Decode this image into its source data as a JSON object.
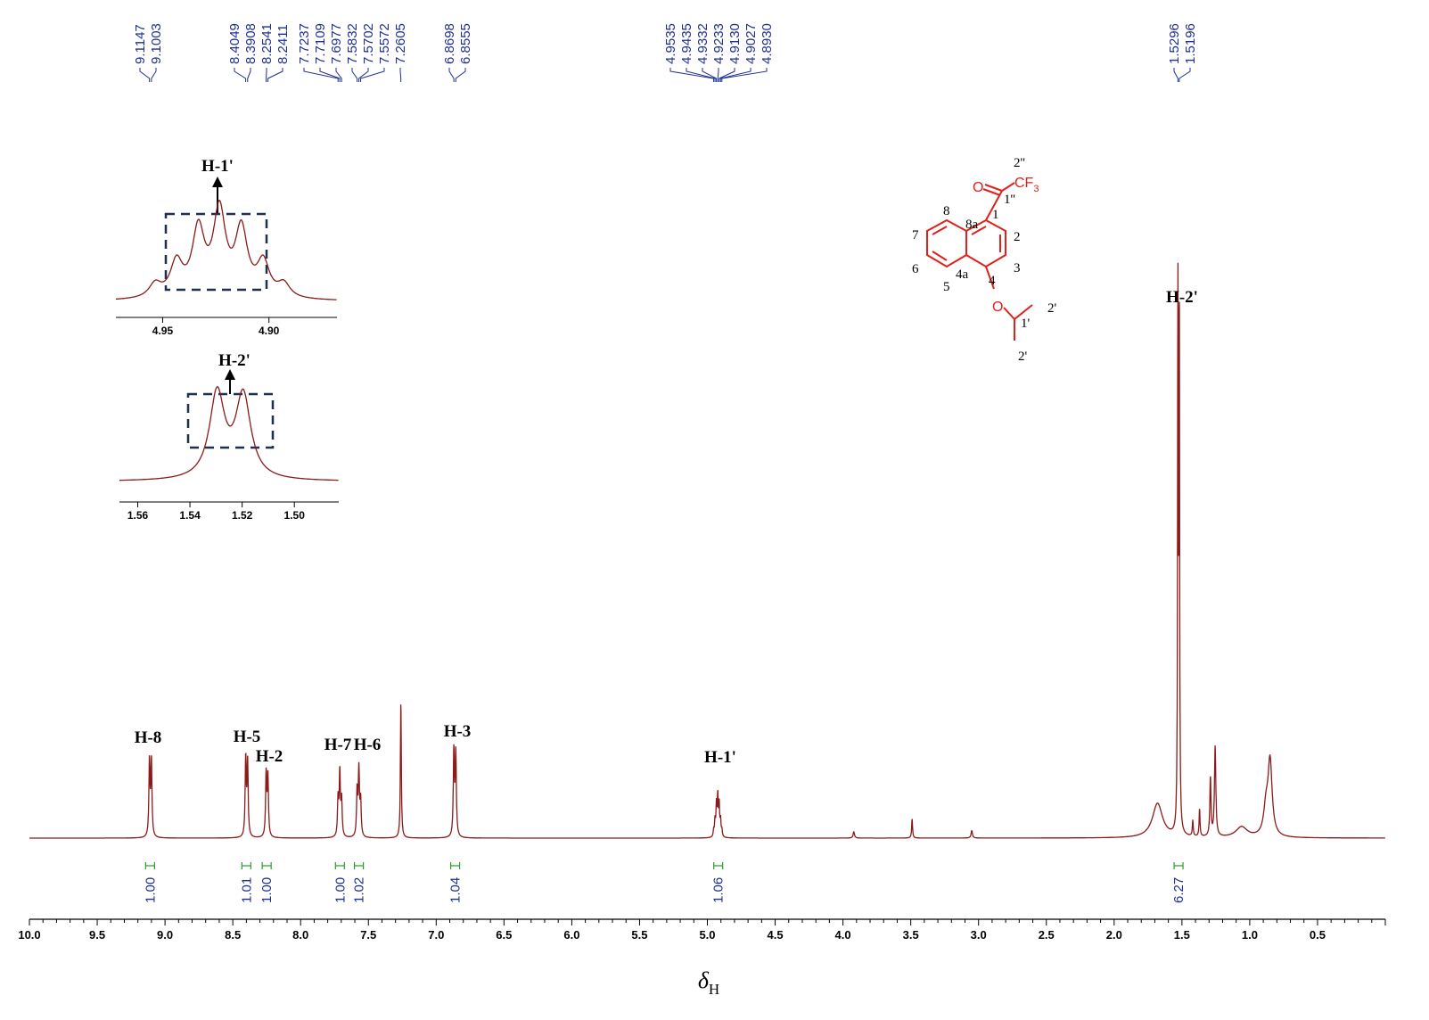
{
  "chart_data": {
    "type": "line",
    "title": "",
    "xlabel": "δH",
    "ylabel": "",
    "xlim": [
      10.0,
      0.0
    ],
    "x_reversed": true,
    "grid": false,
    "x_ticks": [
      "10.0",
      "9.5",
      "9.0",
      "8.5",
      "8.0",
      "7.5",
      "7.0",
      "6.5",
      "6.0",
      "5.5",
      "5.0",
      "4.5",
      "4.0",
      "3.5",
      "3.0",
      "2.5",
      "2.0",
      "1.5",
      "1.0",
      "0.5"
    ],
    "peak_labels": [
      "9.1147",
      "9.1003",
      "8.4049",
      "8.3908",
      "8.2541",
      "8.2411",
      "7.7237",
      "7.7109",
      "7.6977",
      "7.5832",
      "7.5702",
      "7.5572",
      "7.2605",
      "6.8698",
      "6.8555",
      "4.9535",
      "4.9435",
      "4.9332",
      "4.9233",
      "4.9130",
      "4.9027",
      "4.8930",
      "1.5296",
      "1.5196"
    ],
    "integrals": [
      {
        "ppm": 9.11,
        "value": "1.00"
      },
      {
        "ppm": 8.4,
        "value": "1.01"
      },
      {
        "ppm": 8.25,
        "value": "1.00"
      },
      {
        "ppm": 7.71,
        "value": "1.00"
      },
      {
        "ppm": 7.57,
        "value": "1.02"
      },
      {
        "ppm": 6.86,
        "value": "1.04"
      },
      {
        "ppm": 4.92,
        "value": "1.06"
      },
      {
        "ppm": 1.525,
        "value": "6.27"
      }
    ],
    "peaks": [
      {
        "ppm": 9.1147,
        "h": 0.142,
        "w": 0.005
      },
      {
        "ppm": 9.1003,
        "h": 0.142,
        "w": 0.005
      },
      {
        "ppm": 8.4049,
        "h": 0.146,
        "w": 0.005
      },
      {
        "ppm": 8.3908,
        "h": 0.14,
        "w": 0.005
      },
      {
        "ppm": 8.2541,
        "h": 0.118,
        "w": 0.005
      },
      {
        "ppm": 8.2411,
        "h": 0.114,
        "w": 0.005
      },
      {
        "ppm": 7.7237,
        "h": 0.07,
        "w": 0.005
      },
      {
        "ppm": 7.7109,
        "h": 0.118,
        "w": 0.005
      },
      {
        "ppm": 7.6977,
        "h": 0.068,
        "w": 0.005
      },
      {
        "ppm": 7.5832,
        "h": 0.084,
        "w": 0.005
      },
      {
        "ppm": 7.5702,
        "h": 0.124,
        "w": 0.005
      },
      {
        "ppm": 7.5572,
        "h": 0.066,
        "w": 0.005
      },
      {
        "ppm": 7.2605,
        "h": 0.256,
        "w": 0.004
      },
      {
        "ppm": 6.8698,
        "h": 0.16,
        "w": 0.005
      },
      {
        "ppm": 6.8555,
        "h": 0.156,
        "w": 0.005
      },
      {
        "ppm": 4.9535,
        "h": 0.012,
        "w": 0.004
      },
      {
        "ppm": 4.9435,
        "h": 0.03,
        "w": 0.004
      },
      {
        "ppm": 4.9332,
        "h": 0.058,
        "w": 0.004
      },
      {
        "ppm": 4.9233,
        "h": 0.074,
        "w": 0.004
      },
      {
        "ppm": 4.913,
        "h": 0.058,
        "w": 0.004
      },
      {
        "ppm": 4.9027,
        "h": 0.03,
        "w": 0.004
      },
      {
        "ppm": 4.893,
        "h": 0.012,
        "w": 0.004
      },
      {
        "ppm": 3.92,
        "h": 0.012,
        "w": 0.006
      },
      {
        "ppm": 3.49,
        "h": 0.036,
        "w": 0.004
      },
      {
        "ppm": 3.05,
        "h": 0.014,
        "w": 0.006
      },
      {
        "ppm": 1.68,
        "h": 0.065,
        "w": 0.045
      },
      {
        "ppm": 1.5296,
        "h": 1.0,
        "w": 0.003
      },
      {
        "ppm": 1.5196,
        "h": 0.97,
        "w": 0.003
      },
      {
        "ppm": 1.29,
        "h": 0.11,
        "w": 0.005
      },
      {
        "ppm": 1.255,
        "h": 0.17,
        "w": 0.006
      },
      {
        "ppm": 1.37,
        "h": 0.052,
        "w": 0.004
      },
      {
        "ppm": 1.42,
        "h": 0.03,
        "w": 0.004
      },
      {
        "ppm": 1.06,
        "h": 0.02,
        "w": 0.05
      },
      {
        "ppm": 0.88,
        "h": 0.05,
        "w": 0.02
      },
      {
        "ppm": 0.85,
        "h": 0.14,
        "w": 0.018
      }
    ],
    "annotations": [
      {
        "label": "H-8",
        "ppm": 9.11
      },
      {
        "label": "H-5",
        "ppm": 8.4
      },
      {
        "label": "H-2",
        "ppm": 8.25
      },
      {
        "label": "H-7",
        "ppm": 7.72
      },
      {
        "label": "H-6",
        "ppm": 7.57
      },
      {
        "label": "H-3",
        "ppm": 6.86
      },
      {
        "label": "H-1'",
        "ppm": 4.92
      },
      {
        "label": "H-2'",
        "ppm": 1.52
      }
    ],
    "insets": [
      {
        "label": "H-1'",
        "xticks": [
          "4.95",
          "4.90"
        ]
      },
      {
        "label": "H-2'",
        "xticks": [
          "1.56",
          "1.54",
          "1.52",
          "1.50"
        ]
      }
    ],
    "structure_labels": {
      "positions": [
        "8",
        "8a",
        "1",
        "2",
        "3",
        "4",
        "4a",
        "5",
        "6",
        "7",
        "1'",
        "2'",
        "2'",
        "1''",
        "2''"
      ],
      "oxygen_carbonyl": "O",
      "cf3": "CF",
      "cf3_sub": "3",
      "oxygen_ether": "O"
    },
    "colors": {
      "spectrum": "#8b1a1a",
      "peak_label": "#1f2f8f",
      "integral": "#2a9d2a",
      "structure": "#e0201a",
      "inset_box": "#1f2f4f"
    }
  }
}
